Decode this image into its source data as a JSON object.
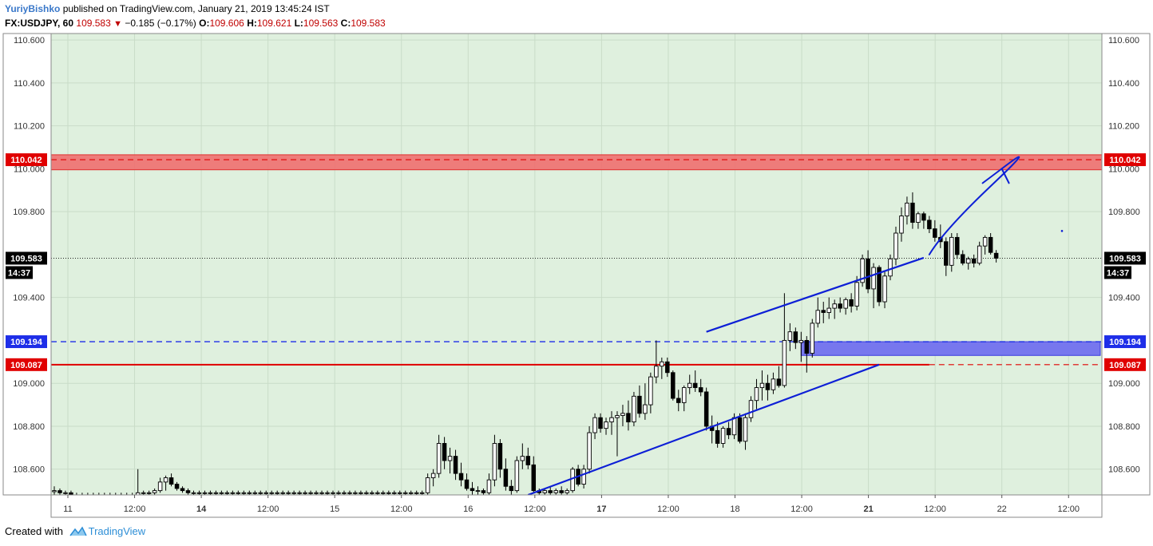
{
  "header": {
    "author": "YuriyBishko",
    "published": "published on TradingView.com, January 21, 2019 13:45:24 IST",
    "symbol": "FX:USDJPY, 60",
    "price": "109.583",
    "change": "−0.185 (−0.17%)",
    "ohlc": [
      {
        "label": "O:",
        "value": "109.606"
      },
      {
        "label": "H:",
        "value": "109.621"
      },
      {
        "label": "L:",
        "value": "109.563"
      },
      {
        "label": "C:",
        "value": "109.583"
      }
    ]
  },
  "footer": {
    "created_with": "Created with",
    "brand": "TradingView"
  },
  "colors": {
    "plot_bg": "#dff0de",
    "grid": "#c9dcc8",
    "resistance_zone": "#ef6f6f",
    "support_zone": "#7777ee",
    "trend": "#0d1fd6",
    "red_line": "#e00000",
    "blue_line": "#1e2ee8"
  },
  "chart_data": {
    "type": "candlestick",
    "title": "",
    "xlabel": "",
    "ylabel": "",
    "ylim": [
      108.48,
      110.63
    ],
    "y_ticks": [
      "110.600",
      "110.400",
      "110.200",
      "110.000",
      "109.800",
      "109.400",
      "109.000",
      "108.800",
      "108.600"
    ],
    "x_ticks": [
      "11",
      "12:00",
      "14",
      "12:00",
      "15",
      "12:00",
      "16",
      "12:00",
      "17",
      "12:00",
      "18",
      "12:00",
      "21",
      "12:00",
      "22",
      "12:00"
    ],
    "bold_x_ticks": [
      "14",
      "17",
      "21"
    ],
    "price_labels": [
      {
        "value": "110.042",
        "color": "#e00000"
      },
      {
        "value": "109.583",
        "color": "#000000"
      },
      {
        "value": "14:37",
        "color": "#000000"
      },
      {
        "value": "109.194",
        "color": "#1e2ee8"
      },
      {
        "value": "109.087",
        "color": "#e00000"
      }
    ],
    "levels": {
      "resistance_line": 110.042,
      "last_price": 109.583,
      "blue_dashed": 109.194,
      "red_solid": 109.087
    },
    "zones": [
      {
        "name": "resistance",
        "top": 110.065,
        "bottom": 109.995,
        "from_bar": 0,
        "to_bar": 189
      },
      {
        "name": "support",
        "top": 109.194,
        "bottom": 109.13,
        "from_bar": 134,
        "to_bar": 199
      }
    ],
    "trendlines": [
      {
        "from": [
          85,
          108.48
        ],
        "to": [
          148,
          109.087
        ]
      },
      {
        "from": [
          117,
          109.24
        ],
        "to": [
          156,
          109.585
        ]
      }
    ],
    "projection_arrow": {
      "from": [
        157,
        109.6
      ],
      "to": [
        170,
        110.0
      ]
    },
    "candles": [
      {
        "o": 108.495,
        "h": 108.52,
        "l": 108.48,
        "c": 108.5
      },
      {
        "o": 108.5,
        "h": 108.51,
        "l": 108.48,
        "c": 108.49
      },
      {
        "o": 108.49,
        "h": 108.5,
        "l": 108.48,
        "c": 108.49
      },
      {
        "o": 108.49,
        "h": 108.5,
        "l": 108.48,
        "c": 108.48
      },
      {
        "o": 108.48,
        "h": 108.49,
        "l": 108.48,
        "c": 108.48
      },
      {
        "o": 108.48,
        "h": 108.49,
        "l": 108.48,
        "c": 108.48
      },
      {
        "o": 108.48,
        "h": 108.49,
        "l": 108.48,
        "c": 108.48
      },
      {
        "o": 108.48,
        "h": 108.49,
        "l": 108.48,
        "c": 108.48
      },
      {
        "o": 108.48,
        "h": 108.49,
        "l": 108.48,
        "c": 108.48
      },
      {
        "o": 108.48,
        "h": 108.49,
        "l": 108.48,
        "c": 108.48
      },
      {
        "o": 108.48,
        "h": 108.49,
        "l": 108.48,
        "c": 108.48
      },
      {
        "o": 108.48,
        "h": 108.49,
        "l": 108.48,
        "c": 108.48
      },
      {
        "o": 108.48,
        "h": 108.49,
        "l": 108.48,
        "c": 108.48
      },
      {
        "o": 108.48,
        "h": 108.49,
        "l": 108.48,
        "c": 108.48
      },
      {
        "o": 108.48,
        "h": 108.49,
        "l": 108.48,
        "c": 108.48
      },
      {
        "o": 108.48,
        "h": 108.6,
        "l": 108.48,
        "c": 108.49
      },
      {
        "o": 108.49,
        "h": 108.5,
        "l": 108.48,
        "c": 108.49
      },
      {
        "o": 108.49,
        "h": 108.5,
        "l": 108.48,
        "c": 108.49
      },
      {
        "o": 108.49,
        "h": 108.51,
        "l": 108.48,
        "c": 108.5
      },
      {
        "o": 108.5,
        "h": 108.56,
        "l": 108.49,
        "c": 108.54
      },
      {
        "o": 108.54,
        "h": 108.57,
        "l": 108.5,
        "c": 108.56
      },
      {
        "o": 108.56,
        "h": 108.58,
        "l": 108.52,
        "c": 108.53
      },
      {
        "o": 108.53,
        "h": 108.54,
        "l": 108.5,
        "c": 108.51
      },
      {
        "o": 108.51,
        "h": 108.52,
        "l": 108.49,
        "c": 108.5
      },
      {
        "o": 108.5,
        "h": 108.51,
        "l": 108.48,
        "c": 108.49
      },
      {
        "o": 108.49,
        "h": 108.5,
        "l": 108.48,
        "c": 108.49
      },
      {
        "o": 108.49,
        "h": 108.5,
        "l": 108.48,
        "c": 108.49
      },
      {
        "o": 108.49,
        "h": 108.5,
        "l": 108.48,
        "c": 108.49
      },
      {
        "o": 108.49,
        "h": 108.5,
        "l": 108.48,
        "c": 108.49
      },
      {
        "o": 108.49,
        "h": 108.5,
        "l": 108.48,
        "c": 108.49
      },
      {
        "o": 108.49,
        "h": 108.5,
        "l": 108.48,
        "c": 108.49
      },
      {
        "o": 108.49,
        "h": 108.5,
        "l": 108.48,
        "c": 108.49
      },
      {
        "o": 108.49,
        "h": 108.5,
        "l": 108.48,
        "c": 108.49
      },
      {
        "o": 108.49,
        "h": 108.5,
        "l": 108.48,
        "c": 108.49
      },
      {
        "o": 108.49,
        "h": 108.5,
        "l": 108.48,
        "c": 108.49
      },
      {
        "o": 108.49,
        "h": 108.5,
        "l": 108.48,
        "c": 108.49
      },
      {
        "o": 108.49,
        "h": 108.5,
        "l": 108.48,
        "c": 108.49
      },
      {
        "o": 108.49,
        "h": 108.5,
        "l": 108.48,
        "c": 108.49
      },
      {
        "o": 108.49,
        "h": 108.5,
        "l": 108.48,
        "c": 108.49
      },
      {
        "o": 108.49,
        "h": 108.5,
        "l": 108.48,
        "c": 108.49
      },
      {
        "o": 108.49,
        "h": 108.5,
        "l": 108.48,
        "c": 108.49
      },
      {
        "o": 108.49,
        "h": 108.5,
        "l": 108.48,
        "c": 108.49
      },
      {
        "o": 108.49,
        "h": 108.5,
        "l": 108.48,
        "c": 108.49
      },
      {
        "o": 108.49,
        "h": 108.5,
        "l": 108.48,
        "c": 108.49
      },
      {
        "o": 108.49,
        "h": 108.5,
        "l": 108.48,
        "c": 108.49
      },
      {
        "o": 108.49,
        "h": 108.5,
        "l": 108.48,
        "c": 108.49
      },
      {
        "o": 108.49,
        "h": 108.5,
        "l": 108.48,
        "c": 108.49
      },
      {
        "o": 108.49,
        "h": 108.5,
        "l": 108.48,
        "c": 108.49
      },
      {
        "o": 108.49,
        "h": 108.5,
        "l": 108.48,
        "c": 108.49
      },
      {
        "o": 108.49,
        "h": 108.5,
        "l": 108.48,
        "c": 108.49
      },
      {
        "o": 108.49,
        "h": 108.5,
        "l": 108.48,
        "c": 108.49
      },
      {
        "o": 108.49,
        "h": 108.5,
        "l": 108.48,
        "c": 108.49
      },
      {
        "o": 108.49,
        "h": 108.5,
        "l": 108.48,
        "c": 108.49
      },
      {
        "o": 108.49,
        "h": 108.5,
        "l": 108.48,
        "c": 108.49
      },
      {
        "o": 108.49,
        "h": 108.5,
        "l": 108.48,
        "c": 108.49
      },
      {
        "o": 108.49,
        "h": 108.5,
        "l": 108.48,
        "c": 108.49
      },
      {
        "o": 108.49,
        "h": 108.5,
        "l": 108.48,
        "c": 108.49
      },
      {
        "o": 108.49,
        "h": 108.5,
        "l": 108.48,
        "c": 108.49
      },
      {
        "o": 108.49,
        "h": 108.5,
        "l": 108.48,
        "c": 108.49
      },
      {
        "o": 108.49,
        "h": 108.5,
        "l": 108.48,
        "c": 108.49
      },
      {
        "o": 108.49,
        "h": 108.5,
        "l": 108.48,
        "c": 108.49
      },
      {
        "o": 108.49,
        "h": 108.5,
        "l": 108.48,
        "c": 108.49
      },
      {
        "o": 108.49,
        "h": 108.5,
        "l": 108.48,
        "c": 108.49
      },
      {
        "o": 108.49,
        "h": 108.5,
        "l": 108.48,
        "c": 108.49
      },
      {
        "o": 108.49,
        "h": 108.5,
        "l": 108.48,
        "c": 108.49
      },
      {
        "o": 108.49,
        "h": 108.5,
        "l": 108.48,
        "c": 108.49
      },
      {
        "o": 108.49,
        "h": 108.5,
        "l": 108.48,
        "c": 108.49
      },
      {
        "o": 108.49,
        "h": 108.58,
        "l": 108.48,
        "c": 108.56
      },
      {
        "o": 108.56,
        "h": 108.6,
        "l": 108.52,
        "c": 108.58
      },
      {
        "o": 108.58,
        "h": 108.76,
        "l": 108.56,
        "c": 108.72
      },
      {
        "o": 108.72,
        "h": 108.75,
        "l": 108.6,
        "c": 108.64
      },
      {
        "o": 108.64,
        "h": 108.7,
        "l": 108.58,
        "c": 108.66
      },
      {
        "o": 108.66,
        "h": 108.69,
        "l": 108.55,
        "c": 108.58
      },
      {
        "o": 108.58,
        "h": 108.63,
        "l": 108.52,
        "c": 108.55
      },
      {
        "o": 108.55,
        "h": 108.58,
        "l": 108.5,
        "c": 108.51
      },
      {
        "o": 108.51,
        "h": 108.54,
        "l": 108.48,
        "c": 108.5
      },
      {
        "o": 108.5,
        "h": 108.52,
        "l": 108.48,
        "c": 108.5
      },
      {
        "o": 108.5,
        "h": 108.51,
        "l": 108.48,
        "c": 108.49
      },
      {
        "o": 108.49,
        "h": 108.58,
        "l": 108.48,
        "c": 108.55
      },
      {
        "o": 108.55,
        "h": 108.76,
        "l": 108.52,
        "c": 108.72
      },
      {
        "o": 108.72,
        "h": 108.74,
        "l": 108.56,
        "c": 108.6
      },
      {
        "o": 108.6,
        "h": 108.65,
        "l": 108.5,
        "c": 108.52
      },
      {
        "o": 108.52,
        "h": 108.55,
        "l": 108.48,
        "c": 108.5
      },
      {
        "o": 108.5,
        "h": 108.66,
        "l": 108.49,
        "c": 108.64
      },
      {
        "o": 108.64,
        "h": 108.72,
        "l": 108.6,
        "c": 108.66
      },
      {
        "o": 108.66,
        "h": 108.7,
        "l": 108.6,
        "c": 108.62
      },
      {
        "o": 108.62,
        "h": 108.66,
        "l": 108.49,
        "c": 108.5
      },
      {
        "o": 108.5,
        "h": 108.51,
        "l": 108.48,
        "c": 108.49
      },
      {
        "o": 108.49,
        "h": 108.51,
        "l": 108.48,
        "c": 108.5
      },
      {
        "o": 108.5,
        "h": 108.52,
        "l": 108.48,
        "c": 108.49
      },
      {
        "o": 108.49,
        "h": 108.51,
        "l": 108.48,
        "c": 108.5
      },
      {
        "o": 108.5,
        "h": 108.52,
        "l": 108.48,
        "c": 108.49
      },
      {
        "o": 108.49,
        "h": 108.51,
        "l": 108.48,
        "c": 108.5
      },
      {
        "o": 108.5,
        "h": 108.61,
        "l": 108.49,
        "c": 108.6
      },
      {
        "o": 108.6,
        "h": 108.62,
        "l": 108.52,
        "c": 108.53
      },
      {
        "o": 108.53,
        "h": 108.62,
        "l": 108.51,
        "c": 108.6
      },
      {
        "o": 108.6,
        "h": 108.8,
        "l": 108.58,
        "c": 108.77
      },
      {
        "o": 108.77,
        "h": 108.86,
        "l": 108.74,
        "c": 108.84
      },
      {
        "o": 108.84,
        "h": 108.86,
        "l": 108.77,
        "c": 108.79
      },
      {
        "o": 108.79,
        "h": 108.84,
        "l": 108.76,
        "c": 108.82
      },
      {
        "o": 108.82,
        "h": 108.87,
        "l": 108.76,
        "c": 108.84
      },
      {
        "o": 108.84,
        "h": 108.87,
        "l": 108.66,
        "c": 108.85
      },
      {
        "o": 108.85,
        "h": 108.9,
        "l": 108.8,
        "c": 108.86
      },
      {
        "o": 108.86,
        "h": 108.92,
        "l": 108.78,
        "c": 108.82
      },
      {
        "o": 108.82,
        "h": 108.96,
        "l": 108.8,
        "c": 108.94
      },
      {
        "o": 108.94,
        "h": 108.99,
        "l": 108.84,
        "c": 108.86
      },
      {
        "o": 108.86,
        "h": 109.0,
        "l": 108.83,
        "c": 108.9
      },
      {
        "o": 108.9,
        "h": 109.05,
        "l": 108.86,
        "c": 109.03
      },
      {
        "o": 109.03,
        "h": 109.2,
        "l": 109.0,
        "c": 109.08
      },
      {
        "o": 109.08,
        "h": 109.12,
        "l": 109.02,
        "c": 109.1
      },
      {
        "o": 109.1,
        "h": 109.12,
        "l": 109.03,
        "c": 109.05
      },
      {
        "o": 109.05,
        "h": 109.06,
        "l": 108.92,
        "c": 108.93
      },
      {
        "o": 108.93,
        "h": 108.97,
        "l": 108.87,
        "c": 108.91
      },
      {
        "o": 108.91,
        "h": 108.99,
        "l": 108.87,
        "c": 108.98
      },
      {
        "o": 108.98,
        "h": 109.04,
        "l": 108.95,
        "c": 109.0
      },
      {
        "o": 109.0,
        "h": 109.06,
        "l": 108.96,
        "c": 108.98
      },
      {
        "o": 108.98,
        "h": 109.02,
        "l": 108.94,
        "c": 108.96
      },
      {
        "o": 108.96,
        "h": 108.98,
        "l": 108.78,
        "c": 108.8
      },
      {
        "o": 108.8,
        "h": 108.85,
        "l": 108.72,
        "c": 108.78
      },
      {
        "o": 108.78,
        "h": 108.82,
        "l": 108.7,
        "c": 108.72
      },
      {
        "o": 108.72,
        "h": 108.8,
        "l": 108.7,
        "c": 108.79
      },
      {
        "o": 108.79,
        "h": 108.82,
        "l": 108.74,
        "c": 108.76
      },
      {
        "o": 108.76,
        "h": 108.86,
        "l": 108.74,
        "c": 108.84
      },
      {
        "o": 108.84,
        "h": 108.86,
        "l": 108.72,
        "c": 108.73
      },
      {
        "o": 108.73,
        "h": 108.86,
        "l": 108.69,
        "c": 108.84
      },
      {
        "o": 108.84,
        "h": 108.94,
        "l": 108.82,
        "c": 108.92
      },
      {
        "o": 108.92,
        "h": 109.02,
        "l": 108.88,
        "c": 108.98
      },
      {
        "o": 108.98,
        "h": 109.06,
        "l": 108.92,
        "c": 109.0
      },
      {
        "o": 109.0,
        "h": 109.04,
        "l": 108.92,
        "c": 108.97
      },
      {
        "o": 108.97,
        "h": 109.05,
        "l": 108.95,
        "c": 109.02
      },
      {
        "o": 109.02,
        "h": 109.08,
        "l": 108.98,
        "c": 108.99
      },
      {
        "o": 108.99,
        "h": 109.42,
        "l": 108.98,
        "c": 109.2
      },
      {
        "o": 109.2,
        "h": 109.28,
        "l": 109.15,
        "c": 109.24
      },
      {
        "o": 109.24,
        "h": 109.26,
        "l": 109.16,
        "c": 109.19
      },
      {
        "o": 109.19,
        "h": 109.24,
        "l": 109.1,
        "c": 109.2
      },
      {
        "o": 109.2,
        "h": 109.22,
        "l": 109.05,
        "c": 109.14
      },
      {
        "o": 109.14,
        "h": 109.3,
        "l": 109.12,
        "c": 109.28
      },
      {
        "o": 109.28,
        "h": 109.4,
        "l": 109.26,
        "c": 109.34
      },
      {
        "o": 109.34,
        "h": 109.38,
        "l": 109.28,
        "c": 109.33
      },
      {
        "o": 109.33,
        "h": 109.4,
        "l": 109.3,
        "c": 109.35
      },
      {
        "o": 109.35,
        "h": 109.39,
        "l": 109.3,
        "c": 109.37
      },
      {
        "o": 109.37,
        "h": 109.4,
        "l": 109.33,
        "c": 109.35
      },
      {
        "o": 109.35,
        "h": 109.4,
        "l": 109.32,
        "c": 109.39
      },
      {
        "o": 109.39,
        "h": 109.42,
        "l": 109.33,
        "c": 109.36
      },
      {
        "o": 109.36,
        "h": 109.5,
        "l": 109.34,
        "c": 109.47
      },
      {
        "o": 109.47,
        "h": 109.6,
        "l": 109.45,
        "c": 109.58
      },
      {
        "o": 109.58,
        "h": 109.62,
        "l": 109.42,
        "c": 109.44
      },
      {
        "o": 109.44,
        "h": 109.56,
        "l": 109.35,
        "c": 109.54
      },
      {
        "o": 109.54,
        "h": 109.55,
        "l": 109.36,
        "c": 109.38
      },
      {
        "o": 109.38,
        "h": 109.52,
        "l": 109.35,
        "c": 109.5
      },
      {
        "o": 109.5,
        "h": 109.6,
        "l": 109.48,
        "c": 109.58
      },
      {
        "o": 109.58,
        "h": 109.73,
        "l": 109.55,
        "c": 109.7
      },
      {
        "o": 109.7,
        "h": 109.82,
        "l": 109.66,
        "c": 109.78
      },
      {
        "o": 109.78,
        "h": 109.87,
        "l": 109.74,
        "c": 109.84
      },
      {
        "o": 109.84,
        "h": 109.89,
        "l": 109.72,
        "c": 109.75
      },
      {
        "o": 109.75,
        "h": 109.8,
        "l": 109.72,
        "c": 109.79
      },
      {
        "o": 109.79,
        "h": 109.8,
        "l": 109.72,
        "c": 109.76
      },
      {
        "o": 109.76,
        "h": 109.78,
        "l": 109.7,
        "c": 109.72
      },
      {
        "o": 109.72,
        "h": 109.76,
        "l": 109.66,
        "c": 109.68
      },
      {
        "o": 109.68,
        "h": 109.74,
        "l": 109.63,
        "c": 109.66
      },
      {
        "o": 109.66,
        "h": 109.68,
        "l": 109.5,
        "c": 109.55
      },
      {
        "o": 109.55,
        "h": 109.7,
        "l": 109.52,
        "c": 109.68
      },
      {
        "o": 109.68,
        "h": 109.7,
        "l": 109.58,
        "c": 109.6
      },
      {
        "o": 109.6,
        "h": 109.62,
        "l": 109.55,
        "c": 109.56
      },
      {
        "o": 109.56,
        "h": 109.59,
        "l": 109.53,
        "c": 109.58
      },
      {
        "o": 109.58,
        "h": 109.6,
        "l": 109.54,
        "c": 109.56
      },
      {
        "o": 109.56,
        "h": 109.66,
        "l": 109.55,
        "c": 109.64
      },
      {
        "o": 109.64,
        "h": 109.69,
        "l": 109.6,
        "c": 109.68
      },
      {
        "o": 109.68,
        "h": 109.7,
        "l": 109.6,
        "c": 109.61
      },
      {
        "o": 109.606,
        "h": 109.621,
        "l": 109.563,
        "c": 109.583
      }
    ]
  }
}
